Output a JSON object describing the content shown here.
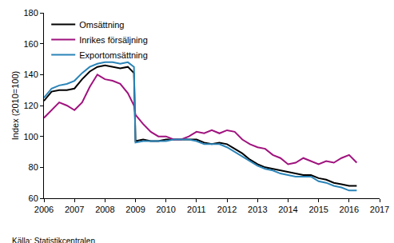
{
  "chart_data": {
    "type": "line",
    "y_label": "Index (2010=100)",
    "source": "Källa: Statistikcentralen",
    "x": [
      2006,
      2006.25,
      2006.5,
      2006.75,
      2007,
      2007.25,
      2007.5,
      2007.75,
      2008,
      2008.25,
      2008.5,
      2008.75,
      2008.95,
      2009,
      2009.25,
      2009.5,
      2009.75,
      2010,
      2010.25,
      2010.5,
      2010.75,
      2011,
      2011.25,
      2011.5,
      2011.75,
      2012,
      2012.25,
      2012.5,
      2012.75,
      2013,
      2013.25,
      2013.5,
      2013.75,
      2014,
      2014.25,
      2014.5,
      2014.75,
      2015,
      2015.25,
      2015.5,
      2015.75,
      2016,
      2016.25
    ],
    "series": [
      {
        "name": "Omsättning",
        "color": "#000000",
        "values": [
          123,
          129,
          130,
          130,
          131,
          137,
          142,
          145,
          146,
          145,
          144,
          145,
          141,
          97,
          98,
          97,
          97,
          98,
          98,
          98,
          98,
          98,
          96,
          95,
          96,
          95,
          92,
          89,
          85,
          82,
          80,
          79,
          78,
          77,
          76,
          75,
          75,
          73,
          72,
          70,
          69,
          68,
          68
        ]
      },
      {
        "name": "Inrikes försäljning",
        "color": "#a0127e",
        "values": [
          112,
          117,
          122,
          120,
          117,
          122,
          132,
          140,
          137,
          136,
          134,
          128,
          120,
          114,
          108,
          103,
          100,
          100,
          98,
          98,
          100,
          103,
          102,
          104,
          102,
          104,
          103,
          98,
          95,
          93,
          92,
          88,
          86,
          82,
          83,
          86,
          84,
          82,
          84,
          83,
          86,
          88,
          83
        ]
      },
      {
        "name": "Exportomsättning",
        "color": "#2a84b8",
        "values": [
          125,
          131,
          133,
          134,
          136,
          141,
          145,
          147,
          148,
          148,
          147,
          148,
          145,
          96,
          97,
          97,
          97,
          97,
          98,
          98,
          98,
          97,
          95,
          95,
          95,
          93,
          90,
          87,
          84,
          81,
          79,
          78,
          76,
          75,
          74,
          74,
          74,
          71,
          70,
          68,
          67,
          65,
          65
        ]
      }
    ],
    "xlim": [
      2006,
      2017
    ],
    "xticks": [
      2006,
      2007,
      2008,
      2009,
      2010,
      2011,
      2012,
      2013,
      2014,
      2015,
      2016,
      2017
    ],
    "ylim": [
      60,
      180
    ],
    "yticks": [
      60,
      80,
      100,
      120,
      140,
      160,
      180
    ],
    "grid": false,
    "legend": "top-left"
  }
}
